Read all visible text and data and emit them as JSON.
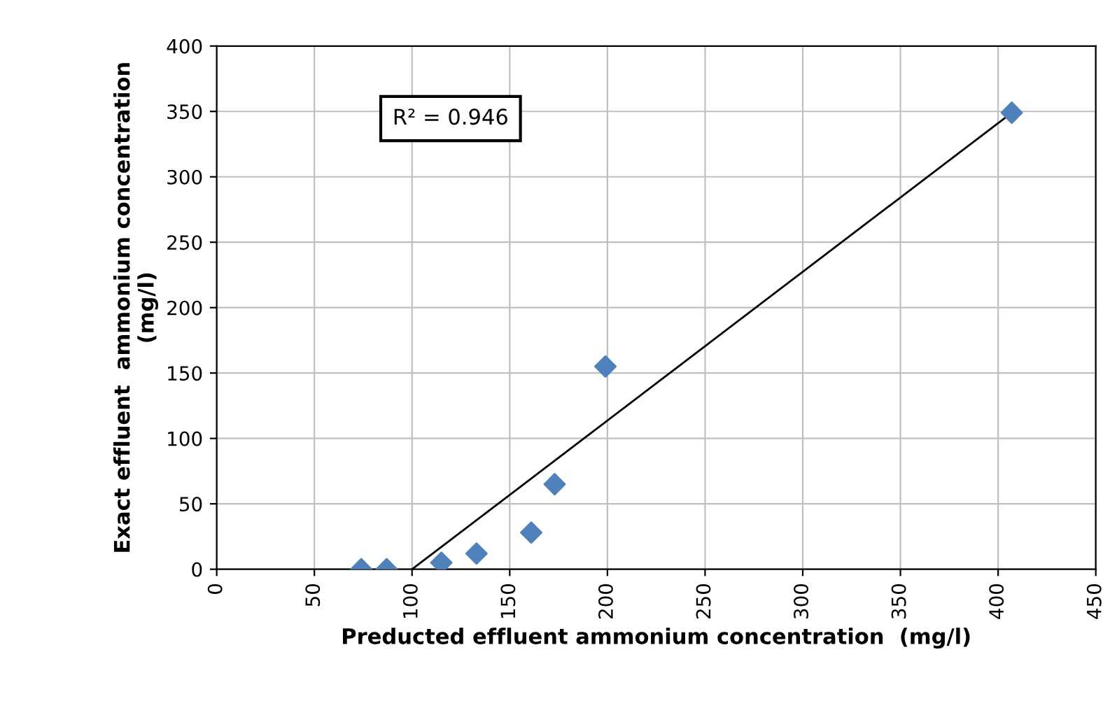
{
  "chart_data": {
    "type": "scatter",
    "xlabel": "Preducted effluent ammonium concentration  (mg/l)",
    "ylabel": "Exact effluent  ammonium concentration\n(mg/l)",
    "series": [
      {
        "color": "#4f81bd",
        "marker": "diamond",
        "x": [
          74,
          87,
          115,
          133,
          161,
          173,
          199,
          407
        ],
        "values": [
          0,
          0,
          5,
          12,
          28,
          65,
          155,
          349
        ]
      },
      {
        "type": "line",
        "color": "#000000",
        "x": [
          100,
          407
        ],
        "values": [
          0,
          349
        ]
      }
    ],
    "xlim": [
      0,
      450
    ],
    "xticks": [
      0,
      50,
      100,
      150,
      200,
      250,
      300,
      350,
      400,
      450
    ],
    "ylim": [
      0,
      400
    ],
    "yticks": [
      0,
      50,
      100,
      150,
      200,
      250,
      300,
      350,
      400
    ],
    "grid": true,
    "annotations": [
      "R² = 0.946"
    ]
  }
}
